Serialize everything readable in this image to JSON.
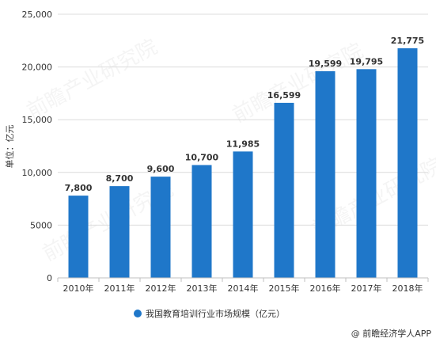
{
  "chart_data": {
    "type": "bar",
    "categories": [
      "2010年",
      "2011年",
      "2012年",
      "2013年",
      "2014年",
      "2015年",
      "2016年",
      "2017年",
      "2018年"
    ],
    "series": [
      {
        "name": "我国教育培训行业市场规模（亿元）",
        "values": [
          7800,
          8700,
          9600,
          10700,
          11985,
          16599,
          19599,
          19795,
          21775
        ]
      }
    ],
    "data_labels": [
      "7,800",
      "8,700",
      "9,600",
      "10,700",
      "11,985",
      "16,599",
      "19,599",
      "19,795",
      "21,775"
    ],
    "ylabel": "单位：亿元",
    "ylim": [
      0,
      25000
    ],
    "yticks": [
      0,
      5000,
      10000,
      15000,
      20000,
      25000
    ],
    "ytick_labels": [
      "0",
      "5000",
      "10,000",
      "15,000",
      "20,000",
      "25,000"
    ],
    "grid": true,
    "legend_position": "bottom",
    "bar_color": "#1f77c9"
  },
  "footer": "@ 前瞻经济学人APP",
  "watermark": "前瞻产业研究院"
}
